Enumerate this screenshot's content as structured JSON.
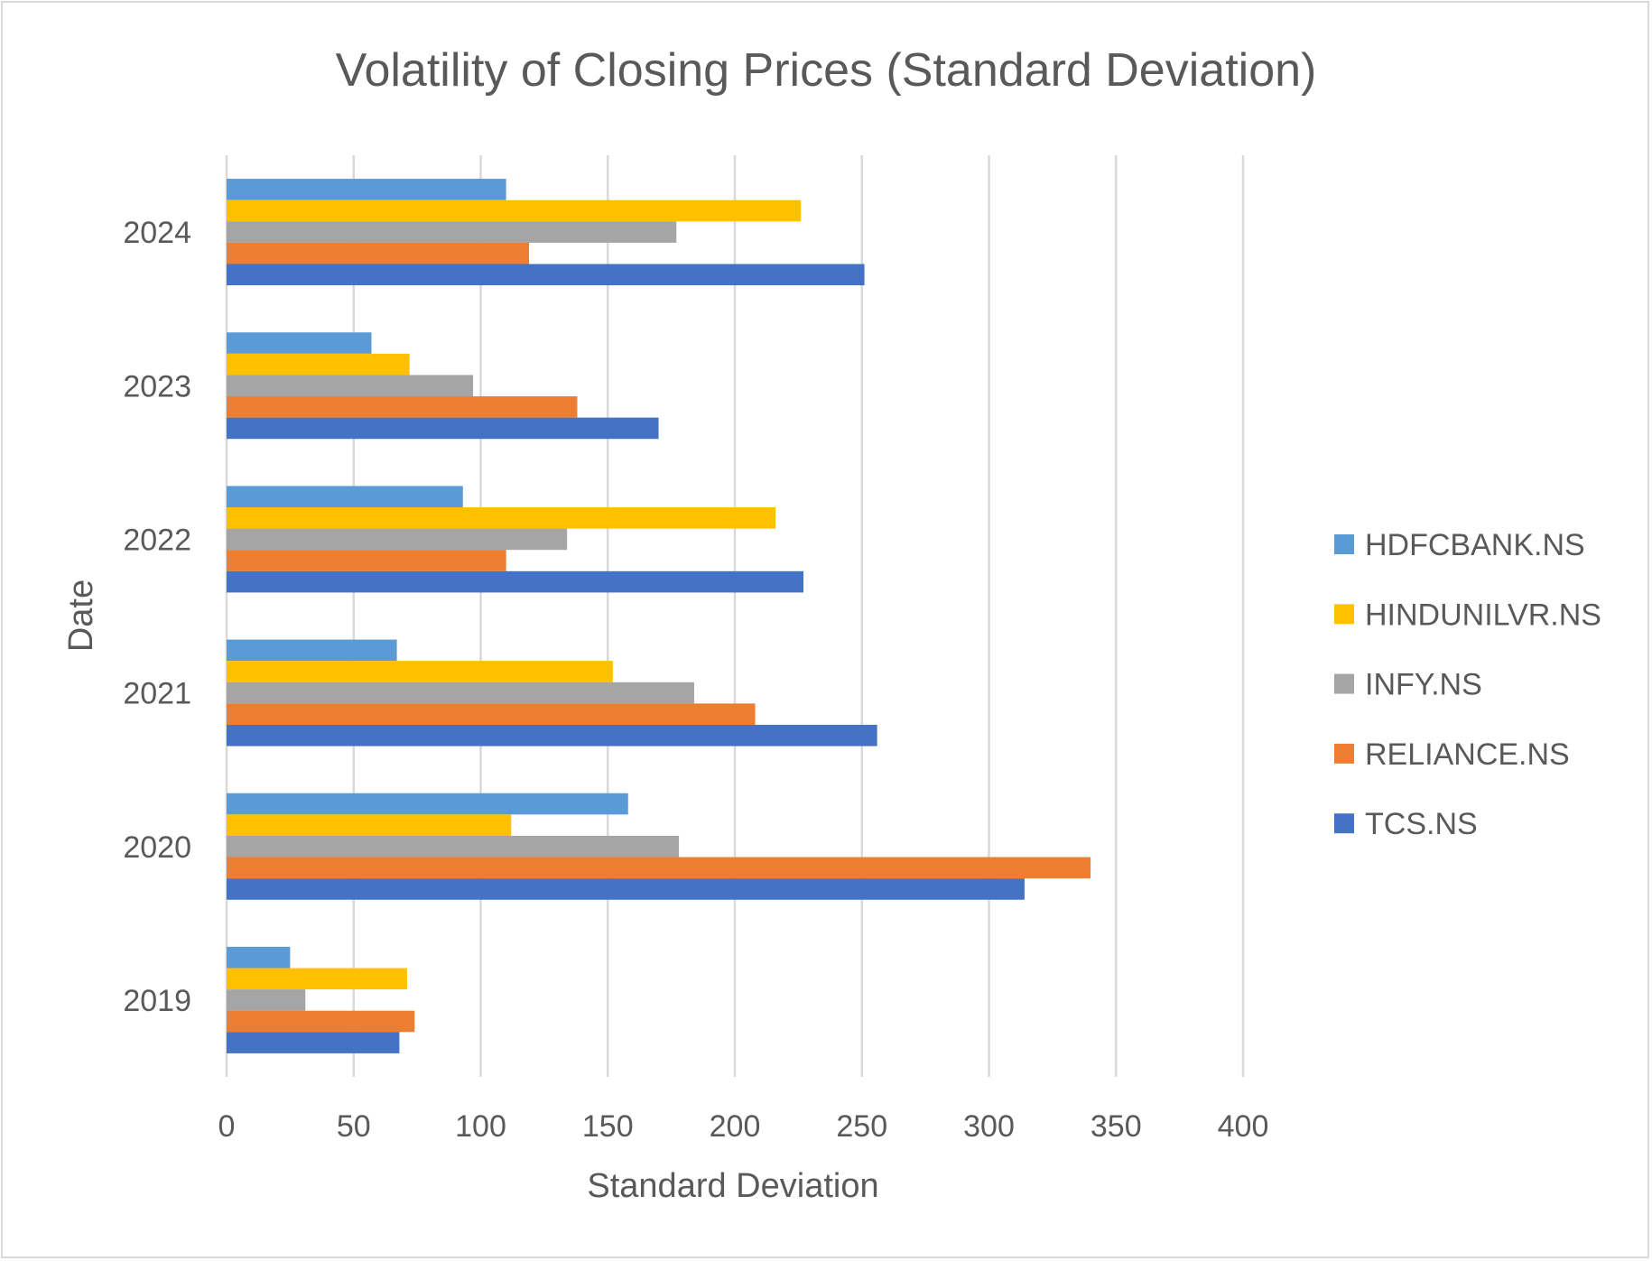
{
  "chart_data": {
    "type": "bar",
    "orientation": "horizontal",
    "title": "Volatility of Closing Prices (Standard Deviation)",
    "xlabel": "Standard Deviation",
    "ylabel": "Date",
    "xlim": [
      0,
      400
    ],
    "x_ticks": [
      "0",
      "50",
      "100",
      "150",
      "200",
      "250",
      "300",
      "350",
      "400"
    ],
    "categories": [
      "2019",
      "2020",
      "2021",
      "2022",
      "2023",
      "2024"
    ],
    "series": [
      {
        "name": "HDFCBANK.NS",
        "color": "#5b9bd5",
        "values": [
          25,
          158,
          67,
          93,
          57,
          110
        ]
      },
      {
        "name": "HINDUNILVR.NS",
        "color": "#ffc000",
        "values": [
          71,
          112,
          152,
          216,
          72,
          226
        ]
      },
      {
        "name": "INFY.NS",
        "color": "#a5a5a5",
        "values": [
          31,
          178,
          184,
          134,
          97,
          177
        ]
      },
      {
        "name": "RELIANCE.NS",
        "color": "#ed7d31",
        "values": [
          74,
          340,
          208,
          110,
          138,
          119
        ]
      },
      {
        "name": "TCS.NS",
        "color": "#4472c4",
        "values": [
          68,
          314,
          256,
          227,
          170,
          251
        ]
      }
    ],
    "grid": true,
    "legend_position": "right"
  }
}
